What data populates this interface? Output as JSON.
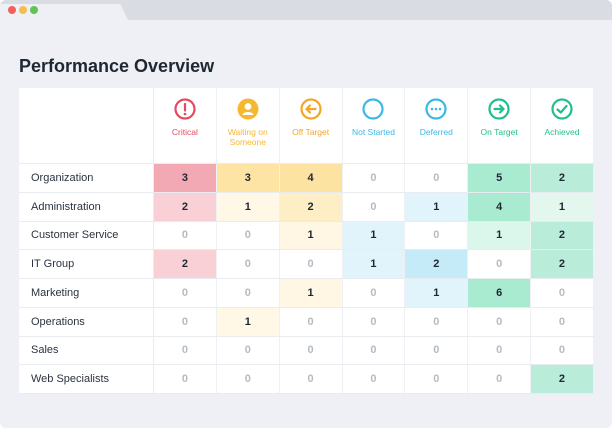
{
  "page": {
    "title": "Performance Overview"
  },
  "colors": {
    "critical": "#e8485f",
    "waiting": "#f5b82e",
    "off_target": "#f5a623",
    "not_started": "#3ab8e6",
    "deferred": "#3ab8e6",
    "on_target": "#1fbf8f",
    "achieved": "#1fbf8f"
  },
  "columns": [
    {
      "key": "critical",
      "label": "Critical",
      "icon": "exclamation-icon",
      "color": "#e8485f"
    },
    {
      "key": "waiting",
      "label": "Waiting on Someone",
      "icon": "person-icon",
      "color": "#f5b82e"
    },
    {
      "key": "off_target",
      "label": "Off Target",
      "icon": "arrow-left-icon",
      "color": "#f5a623"
    },
    {
      "key": "not_started",
      "label": "Not Started",
      "icon": "empty-circle-icon",
      "color": "#3ab8e6"
    },
    {
      "key": "deferred",
      "label": "Deferred",
      "icon": "ellipsis-icon",
      "color": "#3ab8e6"
    },
    {
      "key": "on_target",
      "label": "On Target",
      "icon": "arrow-right-icon",
      "color": "#1fbf8f"
    },
    {
      "key": "achieved",
      "label": "Achieved",
      "icon": "checkmark-icon",
      "color": "#1fbf8f"
    }
  ],
  "rows": [
    {
      "name": "Organization",
      "values": [
        "3",
        "3",
        "4",
        "0",
        "0",
        "5",
        "2"
      ]
    },
    {
      "name": "Administration",
      "values": [
        "2",
        "1",
        "2",
        "0",
        "1",
        "4",
        "1"
      ]
    },
    {
      "name": "Customer Service",
      "values": [
        "0",
        "0",
        "1",
        "1",
        "0",
        "1",
        "2"
      ]
    },
    {
      "name": "IT Group",
      "values": [
        "2",
        "0",
        "0",
        "1",
        "2",
        "0",
        "2"
      ]
    },
    {
      "name": "Marketing",
      "values": [
        "0",
        "0",
        "1",
        "0",
        "1",
        "6",
        "0"
      ]
    },
    {
      "name": "Operations",
      "values": [
        "0",
        "1",
        "0",
        "0",
        "0",
        "0",
        "0"
      ]
    },
    {
      "name": "Sales",
      "values": [
        "0",
        "0",
        "0",
        "0",
        "0",
        "0",
        "0"
      ]
    },
    {
      "name": "Web Specialists",
      "values": [
        "0",
        "0",
        "0",
        "0",
        "0",
        "0",
        "2"
      ]
    }
  ]
}
